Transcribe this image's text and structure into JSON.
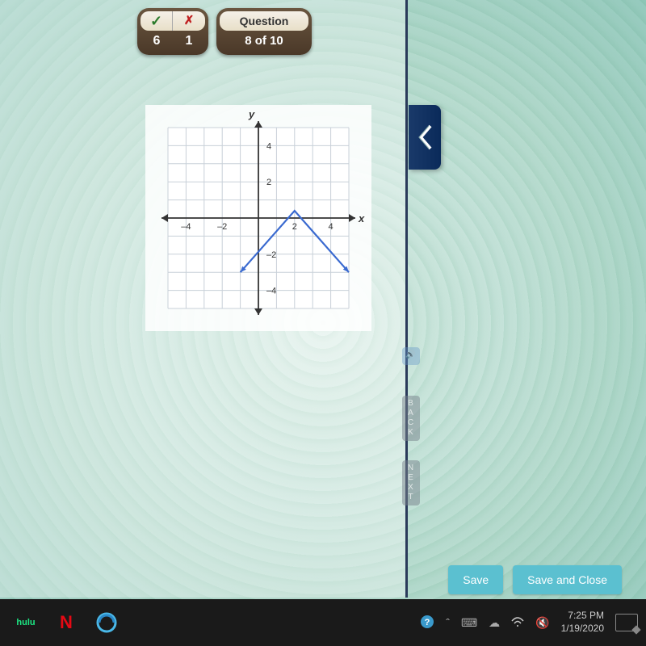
{
  "score": {
    "correct_icon": "✓",
    "wrong_icon": "✗",
    "correct_count": "6",
    "wrong_count": "1"
  },
  "question": {
    "label": "Question",
    "progress": "8 of 10"
  },
  "graph": {
    "y_label": "y",
    "x_label": "x",
    "xmin": -5,
    "xmax": 5,
    "ymin": -5,
    "ymax": 5,
    "xticks": [
      -4,
      -2,
      2,
      4
    ],
    "yticks": [
      -4,
      -2,
      2,
      4
    ],
    "grid_color": "#c8d0d8",
    "axis_color": "#333333",
    "line_color": "#3a6ad0",
    "line_width": 2.2,
    "background_color": "#ffffff",
    "vertex": [
      2,
      0.4
    ],
    "left_end": [
      -1,
      -3
    ],
    "right_end": [
      5,
      -3
    ],
    "tick_fontsize": 11
  },
  "side": {
    "back": "BACK",
    "next": "NEXT"
  },
  "buttons": {
    "save": "Save",
    "save_close": "Save and Close"
  },
  "taskbar": {
    "hulu": "hulu",
    "netflix": "N",
    "time": "7:25 PM",
    "date": "1/19/2020"
  },
  "colors": {
    "badge_dark": "#4a3828",
    "button_bg": "#5bc0d0",
    "sidetab_bg": "#0a2a5a"
  }
}
